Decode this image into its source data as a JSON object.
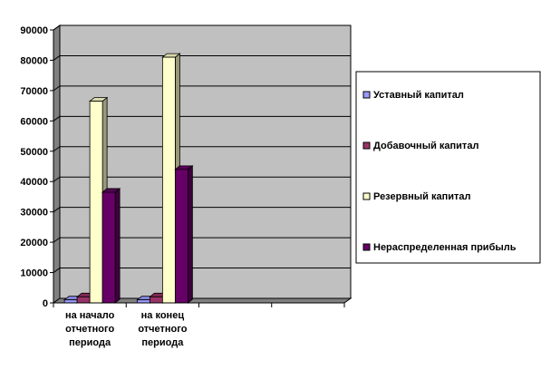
{
  "chart_data": {
    "type": "bar",
    "title": "",
    "xlabel": "",
    "ylabel": "",
    "ylim": [
      0,
      90000
    ],
    "yticks": [
      0,
      10000,
      20000,
      30000,
      40000,
      50000,
      60000,
      70000,
      80000,
      90000
    ],
    "grid": true,
    "three_d": true,
    "legend_position": "right",
    "categories": [
      [
        "на начало",
        "отчетного",
        "периода"
      ],
      [
        "на конец",
        "отчетного",
        "периода"
      ],
      [],
      []
    ],
    "series": [
      {
        "name": "Уставный капитал",
        "color": "#9999ff",
        "values": [
          1000,
          1000,
          null,
          null
        ]
      },
      {
        "name": "Добавочный капитал",
        "color": "#993366",
        "values": [
          2000,
          2000,
          null,
          null
        ]
      },
      {
        "name": "Резервный капитал",
        "color": "#ffffcc",
        "values": [
          66500,
          81000,
          null,
          null
        ]
      },
      {
        "name": "Нераспределенная прибыль",
        "color": "#660066",
        "values": [
          36500,
          44000,
          null,
          null
        ]
      }
    ]
  },
  "colors": {
    "plot_background": "#c0c0c0",
    "plot_wall_side": "#808080",
    "floor": "#808080",
    "gridline": "#000000"
  }
}
